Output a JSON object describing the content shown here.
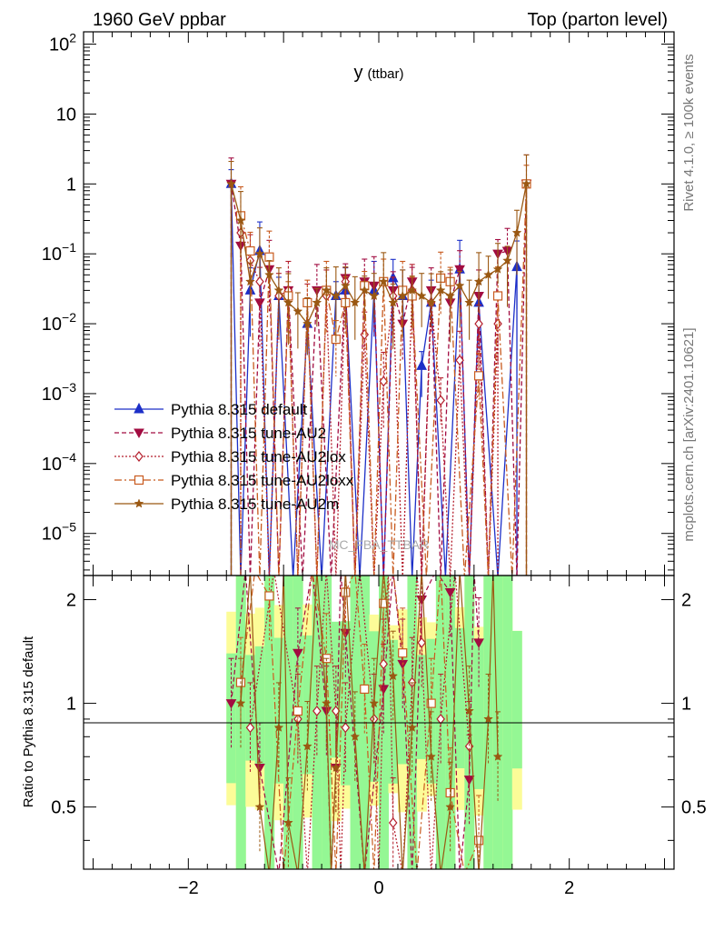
{
  "header": {
    "left": "1960 GeV ppbar",
    "right": "Top (parton level)"
  },
  "side": {
    "upper": "Rivet 4.1.0, ≥ 100k events",
    "lower": "mcplots.cern.ch [arXiv:2401.10621]"
  },
  "watermark": "MC_FBA_TTBAR",
  "colors": {
    "band_inner": "#94f794",
    "band_outer": "#fcfc98",
    "default": "#1c2fc8",
    "au2": "#a20c41",
    "au2lox": "#b41e2c",
    "au2loxx": "#c85a1e",
    "au2m": "#9a5812"
  },
  "chart_data": {
    "type": "line",
    "title": "y",
    "title_sub": "(ttbar)",
    "xlabel": "",
    "ylabel": "",
    "ratio_ylabel": "Ratio to Pythia 8.315 default",
    "xlim": [
      -3.1,
      3.1
    ],
    "ylim": [
      2.5e-06,
      150
    ],
    "yscale": "log",
    "ratio_ylim": [
      0.33,
      2.35
    ],
    "ratio_yscale": "log",
    "x_ticks": [
      -2,
      0,
      2
    ],
    "x_tick_labels": [
      "−2",
      "0",
      "2"
    ],
    "y_ticks": [
      1e-05,
      0.0001,
      0.001,
      0.01,
      0.1,
      1,
      10,
      100
    ],
    "y_tick_labels": [
      {
        "base": "10",
        "exp": "−5"
      },
      {
        "base": "10",
        "exp": "−4"
      },
      {
        "base": "10",
        "exp": "−3"
      },
      {
        "base": "10",
        "exp": "−2"
      },
      {
        "base": "10",
        "exp": "−1"
      },
      {
        "base": "1",
        "exp": ""
      },
      {
        "base": "10",
        "exp": ""
      },
      {
        "base": "10",
        "exp": "2"
      }
    ],
    "ratio_ticks": [
      0.5,
      1,
      2
    ],
    "ratio_tick_labels": [
      "0.5",
      "1",
      "2"
    ],
    "legend_position": "lower-left",
    "series": [
      {
        "name": "Pythia 8.315 default",
        "key": "default",
        "marker": "triangle-up",
        "dash": "",
        "x": [
          -1.55,
          -1.35,
          -1.25,
          -1.05,
          -0.75,
          -0.45,
          -0.35,
          -0.05,
          0.15,
          0.25,
          0.45,
          0.55,
          0.85,
          1.05,
          1.45
        ],
        "values": [
          1.0,
          0.03,
          0.11,
          0.025,
          0.01,
          0.025,
          0.03,
          0.03,
          0.045,
          0.025,
          0.0025,
          0.02,
          0.06,
          0.02,
          0.065
        ],
        "ratio": []
      },
      {
        "name": "Pythia 8.315 tune-AU2",
        "key": "au2",
        "marker": "triangle-down",
        "dash": "5,3",
        "x": [
          -1.55,
          -1.45,
          -1.25,
          -1.15,
          -0.95,
          -0.65,
          -0.35,
          -0.15,
          -0.05,
          0.15,
          0.25,
          0.35,
          0.55,
          0.75,
          0.85,
          1.05,
          1.25,
          1.35,
          1.55
        ],
        "values": [
          1.0,
          0.13,
          0.02,
          0.06,
          0.03,
          0.03,
          0.045,
          0.04,
          0.035,
          0.03,
          0.01,
          0.04,
          0.03,
          0.02,
          0.06,
          0.025,
          0.1,
          0.11,
          1.0
        ],
        "ratio": [
          [
            -1.55,
            1.0
          ],
          [
            -1.25,
            0.65
          ],
          [
            -0.85,
            1.4
          ],
          [
            -0.55,
            0.95
          ],
          [
            -0.45,
            0.65
          ],
          [
            -0.35,
            1.6
          ],
          [
            0.05,
            1.1
          ],
          [
            0.25,
            1.3
          ],
          [
            0.45,
            2.0
          ],
          [
            0.75,
            2.1
          ],
          [
            0.95,
            0.6
          ],
          [
            1.05,
            1.5
          ]
        ]
      },
      {
        "name": "Pythia 8.315 tune-AU2lox",
        "key": "au2lox",
        "marker": "diamond",
        "dash": "2,2",
        "x": [
          -1.45,
          -1.35,
          -1.25,
          -1.05,
          -0.95,
          -0.75,
          -0.55,
          -0.35,
          -0.15,
          0.05,
          0.15,
          0.35,
          0.55,
          0.65,
          0.85,
          1.05,
          1.25
        ],
        "values": [
          0.2,
          0.08,
          0.04,
          0.025,
          0.03,
          0.02,
          0.025,
          0.04,
          0.007,
          0.0015,
          0.025,
          0.03,
          0.02,
          0.0008,
          0.003,
          0.01,
          0.01
        ],
        "ratio": [
          [
            -1.35,
            0.85
          ],
          [
            -0.85,
            0.9
          ],
          [
            -0.65,
            0.95
          ],
          [
            -0.45,
            0.95
          ],
          [
            -0.35,
            0.85
          ],
          [
            -0.05,
            0.9
          ],
          [
            0.05,
            1.3
          ],
          [
            0.15,
            0.45
          ],
          [
            0.35,
            1.15
          ],
          [
            0.45,
            1.5
          ],
          [
            0.65,
            0.9
          ],
          [
            0.95,
            0.75
          ]
        ]
      },
      {
        "name": "Pythia 8.315 tune-AU2loxx",
        "key": "au2loxx",
        "marker": "square",
        "dash": "8,3,2,3",
        "x": [
          -1.45,
          -1.35,
          -1.15,
          -0.95,
          -0.75,
          -0.55,
          -0.45,
          -0.35,
          -0.15,
          0.05,
          0.25,
          0.35,
          0.65,
          0.75,
          1.05,
          1.25,
          1.55
        ],
        "values": [
          0.35,
          0.11,
          0.09,
          0.025,
          0.02,
          0.03,
          0.006,
          0.02,
          0.035,
          0.04,
          0.03,
          0.025,
          0.045,
          0.04,
          0.0018,
          0.025,
          1.0
        ],
        "ratio": [
          [
            -1.45,
            1.15
          ],
          [
            -1.15,
            2.05
          ],
          [
            -0.85,
            0.95
          ],
          [
            -0.55,
            1.35
          ],
          [
            -0.35,
            2.1
          ],
          [
            -0.15,
            1.1
          ],
          [
            0.05,
            1.95
          ],
          [
            0.25,
            1.4
          ],
          [
            0.55,
            1.0
          ],
          [
            0.75,
            0.55
          ],
          [
            1.05,
            0.4
          ]
        ]
      },
      {
        "name": "Pythia 8.315 tune-AU2m",
        "key": "au2m",
        "marker": "star",
        "dash": "",
        "x": [
          -1.55,
          -1.45,
          -1.35,
          -1.25,
          -1.15,
          -1.05,
          -0.95,
          -0.85,
          -0.75,
          -0.65,
          -0.55,
          -0.45,
          -0.35,
          -0.25,
          -0.15,
          -0.05,
          0.05,
          0.15,
          0.25,
          0.35,
          0.45,
          0.55,
          0.65,
          0.75,
          0.85,
          0.95,
          1.05,
          1.15,
          1.25,
          1.35,
          1.45,
          1.55
        ],
        "values": [
          1.0,
          0.3,
          0.04,
          0.1,
          0.05,
          0.03,
          0.02,
          0.015,
          0.01,
          0.02,
          0.03,
          0.025,
          0.035,
          0.02,
          0.03,
          0.025,
          0.04,
          0.02,
          0.025,
          0.03,
          0.025,
          0.02,
          0.03,
          0.025,
          0.035,
          0.02,
          0.04,
          0.05,
          0.06,
          0.08,
          0.2,
          1.0
        ],
        "ratio": [
          [
            -1.45,
            1.0
          ],
          [
            -1.25,
            0.5
          ],
          [
            -1.05,
            0.85
          ],
          [
            -0.95,
            0.45
          ],
          [
            -0.75,
            0.75
          ],
          [
            -0.55,
            1.0
          ],
          [
            -0.45,
            0.65
          ],
          [
            -0.25,
            0.8
          ],
          [
            -0.05,
            1.0
          ],
          [
            0.15,
            1.2
          ],
          [
            0.35,
            0.85
          ],
          [
            0.55,
            0.7
          ],
          [
            0.75,
            0.5
          ],
          [
            0.95,
            0.95
          ],
          [
            1.15,
            0.9
          ],
          [
            1.25,
            0.7
          ]
        ]
      }
    ]
  }
}
